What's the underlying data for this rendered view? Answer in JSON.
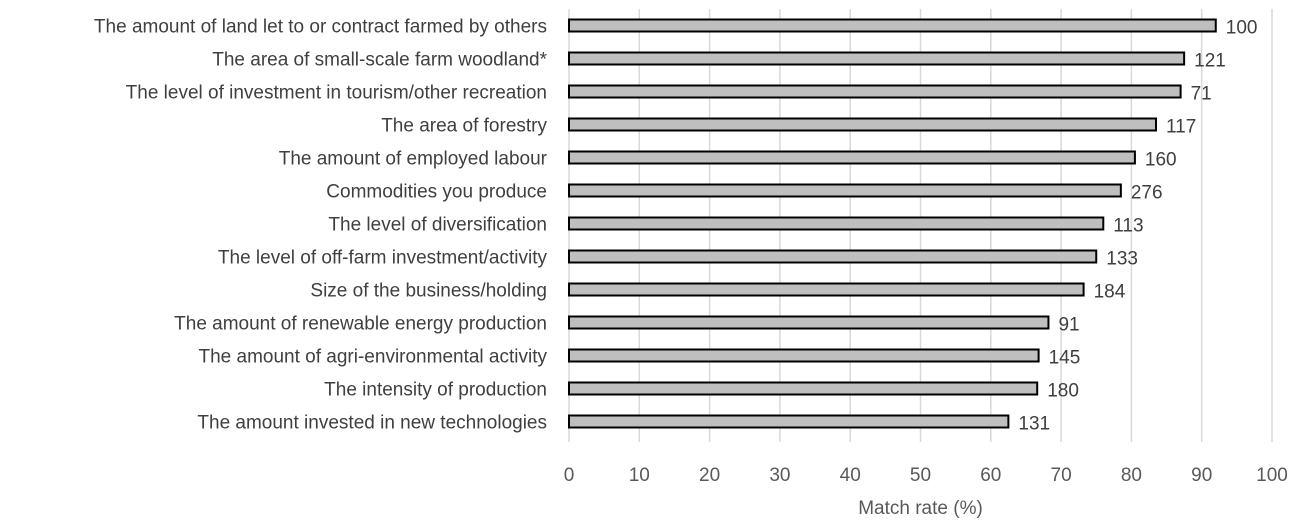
{
  "chart_data": {
    "type": "bar",
    "orientation": "horizontal",
    "categories": [
      "The amount of land let to or contract farmed by others",
      "The area of small-scale farm woodland*",
      "The level of investment in tourism/other recreation",
      "The area of forestry",
      "The amount of employed labour",
      "Commodities you produce",
      "The level of diversification",
      "The level of off-farm investment/activity",
      "Size of the business/holding",
      "The amount of renewable energy production",
      "The amount of agri-environmental activity",
      "The intensity of production",
      "The amount invested in new technologies"
    ],
    "values": [
      92,
      87.5,
      87,
      83.5,
      80.5,
      78.5,
      76,
      75,
      73.2,
      68.2,
      66.8,
      66.6,
      62.5
    ],
    "data_labels": [
      "100",
      "121",
      "71",
      "117",
      "160",
      "276",
      "113",
      "133",
      "184",
      "91",
      "145",
      "180",
      "131"
    ],
    "xlabel": "Match rate (%)",
    "ylabel": "",
    "xlim": [
      0,
      100
    ],
    "xticks": [
      "0",
      "10",
      "20",
      "30",
      "40",
      "50",
      "60",
      "70",
      "80",
      "90",
      "100"
    ],
    "grid": "vertical",
    "bar_color": "#bfbfbf",
    "bar_edge_color": "#000000",
    "gridline_color": "#d9d9d9"
  }
}
